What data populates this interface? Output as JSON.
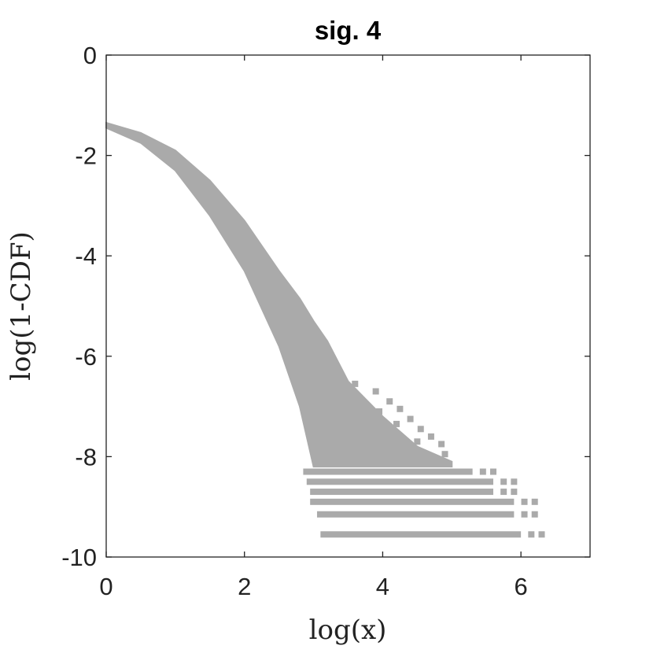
{
  "chart_data": {
    "type": "scatter",
    "title": "sig. 4",
    "xlabel": "log(x)",
    "ylabel": "log(1-CDF)",
    "xlim": [
      0,
      7
    ],
    "ylim": [
      -10,
      0
    ],
    "xticks": [
      0,
      2,
      4,
      6
    ],
    "xtick_labels": [
      "0",
      "2",
      "4",
      "6"
    ],
    "yticks": [
      0,
      -2,
      -4,
      -6,
      -8,
      -10
    ],
    "ytick_labels": [
      "0",
      "-2",
      "-4",
      "-6",
      "-8",
      "-10"
    ],
    "grid": false,
    "legend": "none",
    "marker_color": "#aaaaaa",
    "band": {
      "x": [
        0.0,
        0.5,
        1.0,
        1.5,
        2.0,
        2.5,
        2.8,
        3.0,
        3.2,
        3.5,
        4.0,
        4.5,
        5.0
      ],
      "upper": [
        -1.35,
        -1.55,
        -1.9,
        -2.5,
        -3.3,
        -4.3,
        -4.85,
        -5.3,
        -5.7,
        -6.5,
        -7.2,
        -7.8,
        -8.1
      ],
      "lower": [
        -1.45,
        -1.75,
        -2.3,
        -3.2,
        -4.3,
        -5.8,
        -7.0,
        -8.2,
        -8.2,
        -8.2,
        -8.2,
        -8.2,
        -8.2
      ]
    },
    "tail_levels": [
      {
        "y": -8.3,
        "x_start": 2.85,
        "x_end": 5.3
      },
      {
        "y": -8.5,
        "x_start": 2.9,
        "x_end": 5.6
      },
      {
        "y": -8.7,
        "x_start": 2.95,
        "x_end": 5.6
      },
      {
        "y": -8.9,
        "x_start": 2.95,
        "x_end": 5.9
      },
      {
        "y": -9.15,
        "x_start": 3.05,
        "x_end": 5.9
      },
      {
        "y": -9.55,
        "x_start": 3.1,
        "x_end": 6.0
      }
    ]
  }
}
